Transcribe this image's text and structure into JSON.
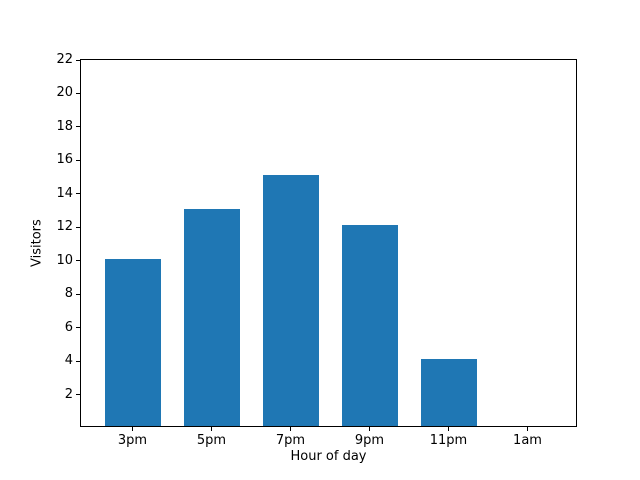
{
  "figure": {
    "background_color": "#ffffff",
    "spine_color": "#000000",
    "text_color": "#000000"
  },
  "chart_data": {
    "type": "bar",
    "title": "",
    "xlabel": "Hour of day",
    "ylabel": "Visitors",
    "categories": [
      "3pm",
      "5pm",
      "7pm",
      "9pm",
      "11pm",
      "1am"
    ],
    "values": [
      10,
      13,
      15,
      12,
      4,
      0
    ],
    "bar_color": "#1f77b4",
    "ylim": [
      0,
      22
    ],
    "yticks": [
      2,
      4,
      6,
      8,
      10,
      12,
      14,
      16,
      18,
      20,
      22
    ],
    "grid": false,
    "legend": null
  }
}
